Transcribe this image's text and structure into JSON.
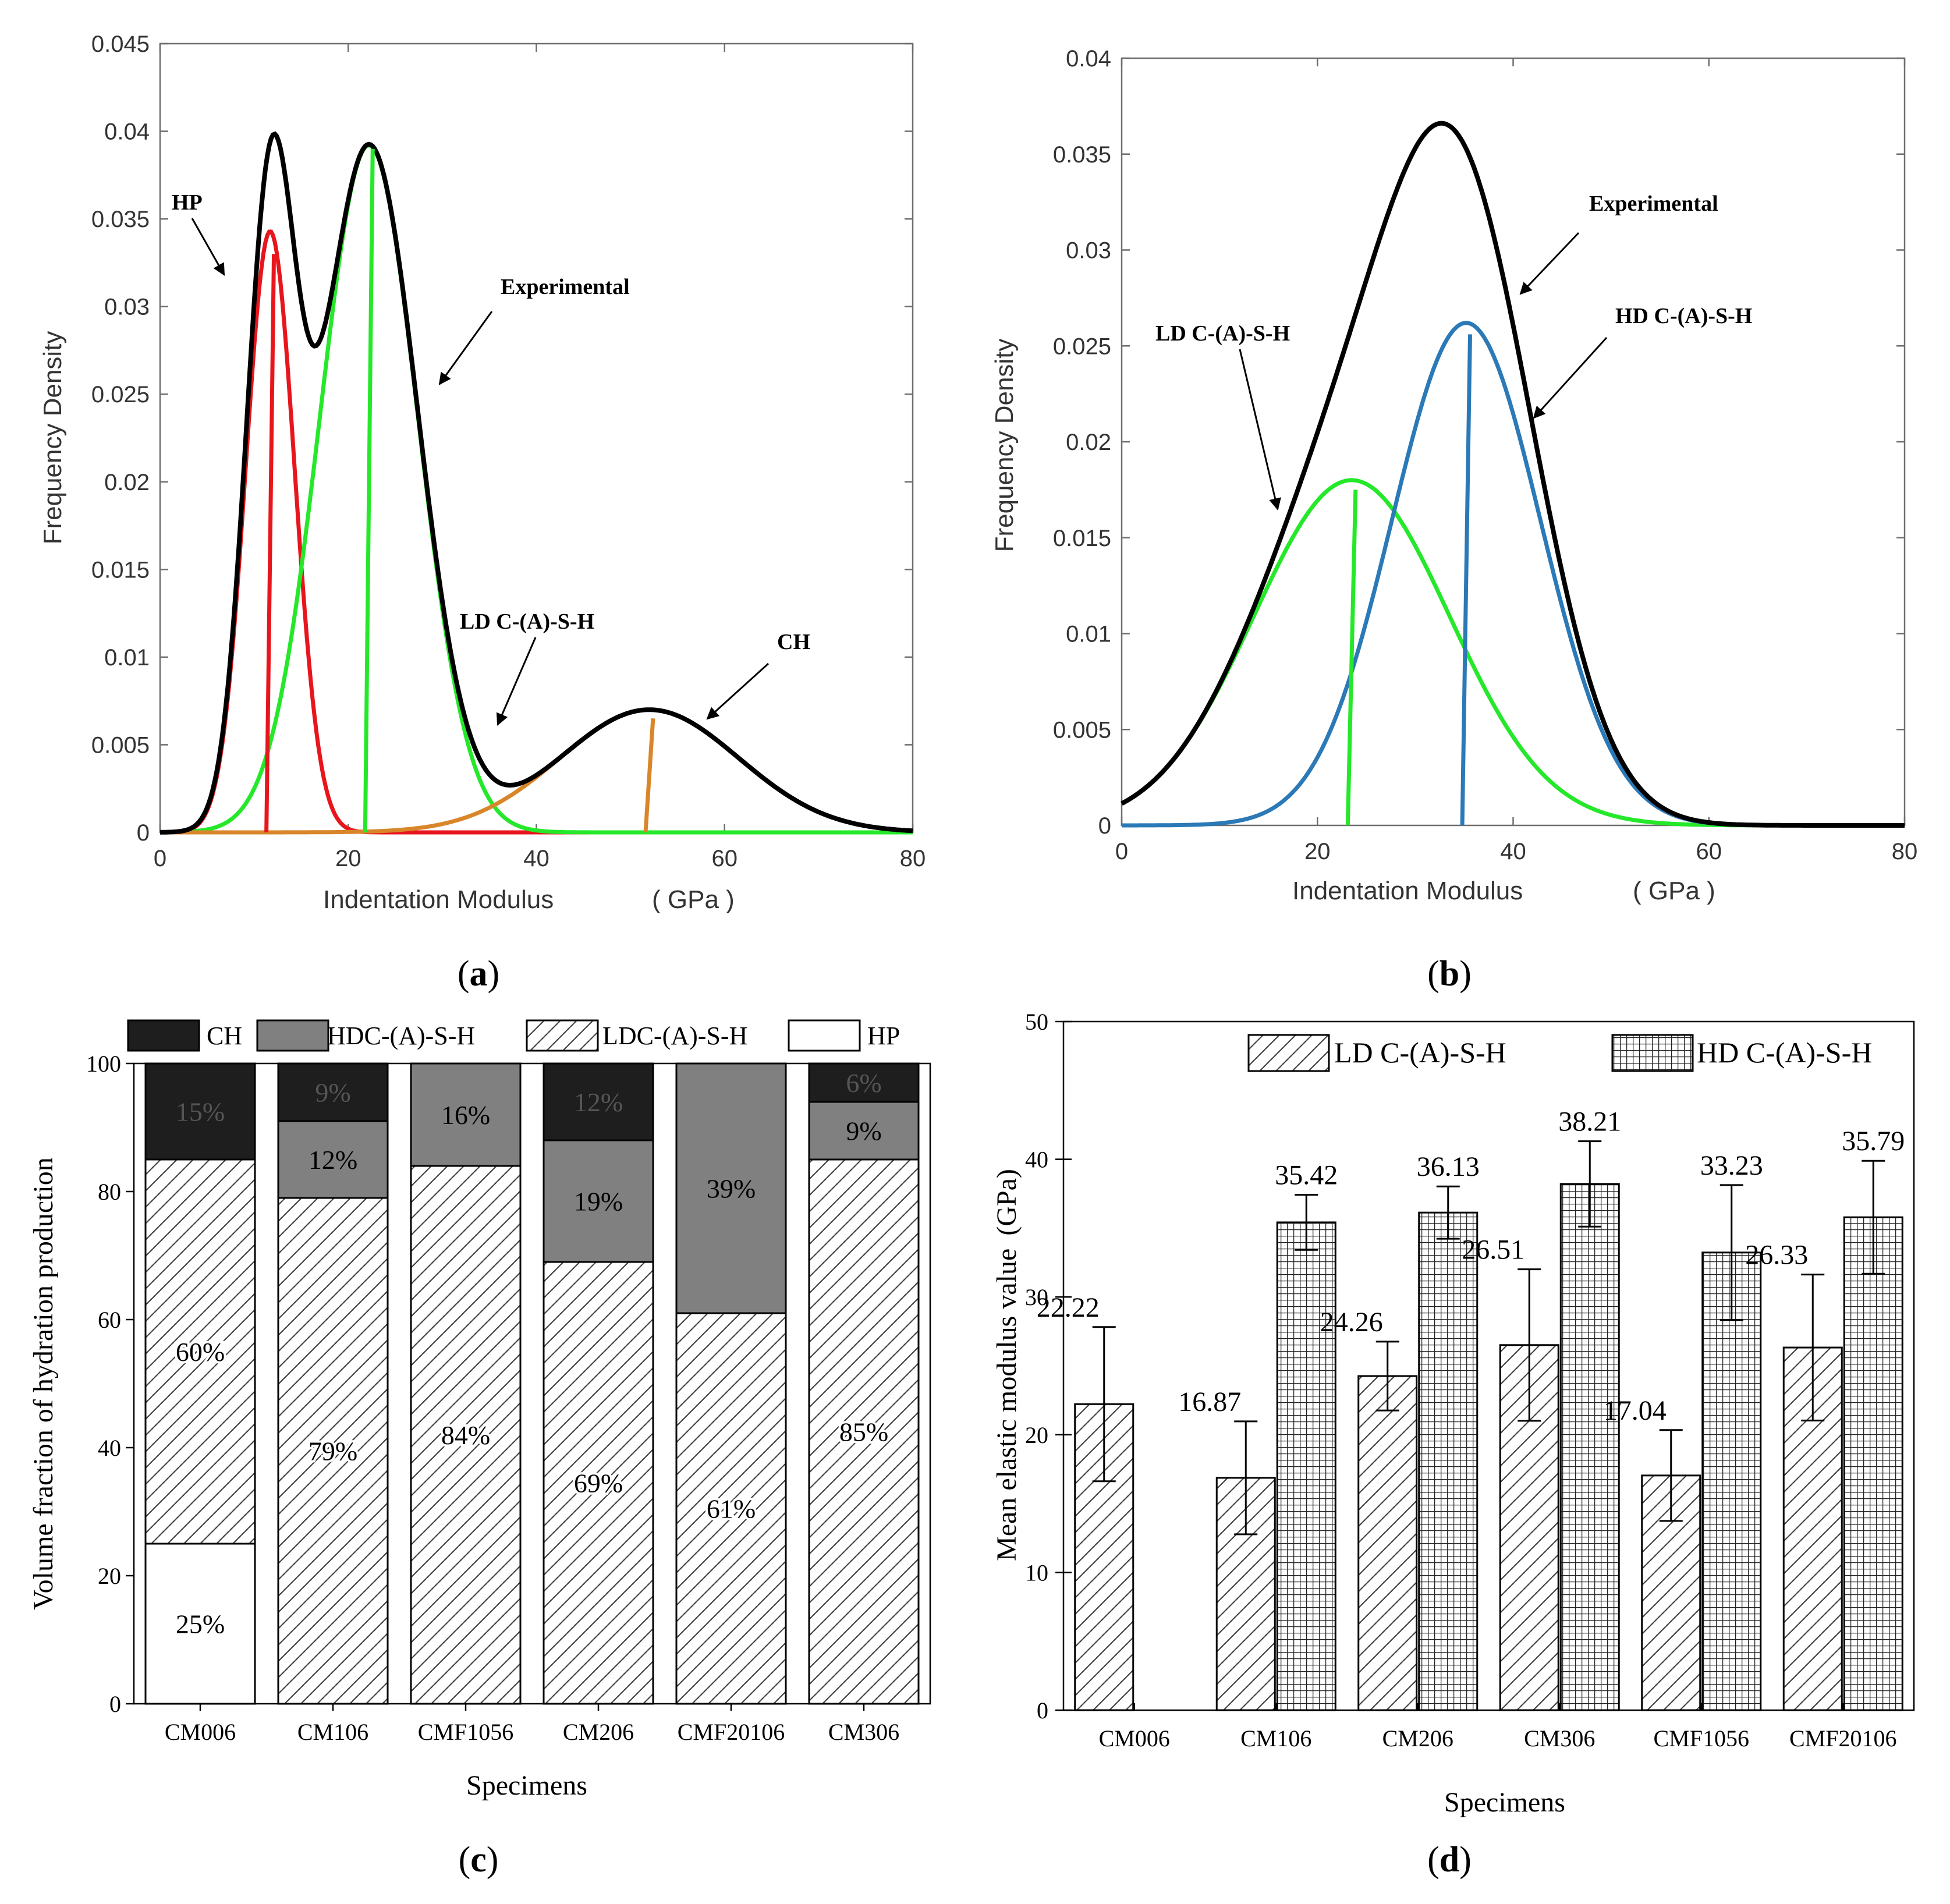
{
  "panels": {
    "a": {
      "caption": "a"
    },
    "b": {
      "caption": "b"
    },
    "c": {
      "caption": "c"
    },
    "d": {
      "caption": "d"
    }
  },
  "colors": {
    "experimental": "#000000",
    "hp": "#e8161c",
    "ld": "#25e82a",
    "ch": "#d9862a",
    "hd": "#2b79b6",
    "ch_fill": "#1e1e1e",
    "hd_fill": "#808080"
  },
  "chart_data": [
    {
      "id": "a",
      "type": "line",
      "xlabel": "Indentation  Modulus",
      "xunit": "( GPa )",
      "ylabel": "Frequency  Density",
      "xlim": [
        0,
        80
      ],
      "ylim": [
        0,
        0.045
      ],
      "xticks": [
        0,
        20,
        40,
        60,
        80
      ],
      "yticks": [
        0,
        0.005,
        0.01,
        0.015,
        0.02,
        0.025,
        0.03,
        0.035,
        0.04,
        0.045
      ],
      "ytick_labels": [
        "0",
        "0.005",
        "0.01",
        "0.015",
        "0.02",
        "0.025",
        "0.03",
        "0.035",
        "0.04",
        "0.045"
      ],
      "series": [
        {
          "name": "HP",
          "color_key": "hp",
          "mean": 11.7,
          "sd": 2.6,
          "peak": 0.0343,
          "marker_top": 0.033
        },
        {
          "name": "LD C-(A)-S-H",
          "color_key": "ld",
          "mean": 22.2,
          "sd": 5.2,
          "peak": 0.0392,
          "marker_top": 0.039
        },
        {
          "name": "CH",
          "color_key": "ch",
          "mean": 52.0,
          "sd": 9.5,
          "peak": 0.007,
          "marker_top": 0.0065
        },
        {
          "name": "Experimental",
          "color_key": "experimental",
          "composite": true
        }
      ],
      "annotations": [
        {
          "label": "HP",
          "target": "hp"
        },
        {
          "label": "Experimental",
          "target": "experimental"
        },
        {
          "label": "LD C-(A)-S-H",
          "target": "ld"
        },
        {
          "label": "CH",
          "target": "ch"
        }
      ]
    },
    {
      "id": "b",
      "type": "line",
      "xlabel": "Indentation  Modulus",
      "xunit": "( GPa )",
      "ylabel": "Frequency  Density",
      "xlim": [
        0,
        80
      ],
      "ylim": [
        0,
        0.04
      ],
      "xticks": [
        0,
        20,
        40,
        60,
        80
      ],
      "yticks": [
        0,
        0.005,
        0.01,
        0.015,
        0.02,
        0.025,
        0.03,
        0.035,
        0.04
      ],
      "ytick_labels": [
        "0",
        "0.005",
        "0.01",
        "0.015",
        "0.02",
        "0.025",
        "0.03",
        "0.035",
        "0.04"
      ],
      "series": [
        {
          "name": "LD C-(A)-S-H",
          "color_key": "ld",
          "mean": 23.5,
          "sd": 10.0,
          "peak": 0.018,
          "marker_top": 0.0175
        },
        {
          "name": "HD C-(A)-S-H",
          "color_key": "hd",
          "mean": 35.2,
          "sd": 7.6,
          "peak": 0.0262,
          "marker_top": 0.0256
        },
        {
          "name": "Experimental",
          "color_key": "experimental",
          "composite": true
        }
      ],
      "annotations": [
        {
          "label": "Experimental",
          "target": "experimental"
        },
        {
          "label": "LD C-(A)-S-H",
          "target": "ld"
        },
        {
          "label": "HD C-(A)-S-H",
          "target": "hd"
        }
      ]
    },
    {
      "id": "c",
      "type": "bar",
      "stacked": true,
      "xlabel": "Specimens",
      "ylabel": "Volume fraction of hydration production",
      "ylim": [
        0,
        100
      ],
      "yticks": [
        0,
        20,
        40,
        60,
        80,
        100
      ],
      "categories": [
        "CM006",
        "CM106",
        "CMF1056",
        "CM206",
        "CMF20106",
        "CM306"
      ],
      "series": [
        {
          "name": "HP",
          "pattern": "white",
          "values": [
            25,
            0,
            0,
            0,
            0,
            0
          ],
          "labels": [
            "25%",
            "",
            "",
            "",
            "",
            ""
          ]
        },
        {
          "name": "LDC-(A)-S-H",
          "pattern": "hatch",
          "values": [
            60,
            79,
            84,
            69,
            61,
            85
          ],
          "labels": [
            "60%",
            "79%",
            "84%",
            "69%",
            "61%",
            "85%"
          ]
        },
        {
          "name": "HDC-(A)-S-H",
          "pattern": "gray",
          "values": [
            0,
            12,
            16,
            19,
            39,
            9
          ],
          "labels": [
            "",
            "12%",
            "16%",
            "19%",
            "39%",
            "9%"
          ]
        },
        {
          "name": "CH",
          "pattern": "dark",
          "values": [
            15,
            9,
            0,
            12,
            0,
            6
          ],
          "labels": [
            "15%",
            "9%",
            "",
            "12%",
            "",
            "6%"
          ]
        }
      ],
      "legend_order": [
        "CH",
        "HDC-(A)-S-H",
        "LDC-(A)-S-H",
        "HP"
      ],
      "legend": "top"
    },
    {
      "id": "d",
      "type": "bar",
      "grouped": true,
      "xlabel": "Specimens",
      "ylabel": "Mean elastic modulus value",
      "yunit": "(GPa)",
      "ylim": [
        0,
        50
      ],
      "yticks": [
        0,
        10,
        20,
        30,
        40,
        50
      ],
      "categories": [
        "CM006",
        "CM106",
        "CM206",
        "CM306",
        "CMF1056",
        "CMF20106"
      ],
      "series": [
        {
          "name": "LD C-(A)-S-H",
          "pattern": "hatch",
          "values": [
            22.22,
            16.87,
            24.26,
            26.51,
            17.04,
            26.33
          ],
          "labels": [
            "22.22",
            "16.87",
            "24.26",
            "26.51",
            "17.04",
            "26.33"
          ],
          "errors": [
            5.6,
            4.1,
            2.5,
            5.5,
            3.3,
            5.3
          ]
        },
        {
          "name": "HD C-(A)-S-H",
          "pattern": "grid",
          "values": [
            null,
            35.42,
            36.13,
            38.21,
            33.23,
            35.79
          ],
          "labels": [
            "",
            "35.42",
            "36.13",
            "38.21",
            "33.23",
            "35.79"
          ],
          "errors": [
            null,
            2.0,
            1.9,
            3.1,
            4.9,
            4.1
          ]
        }
      ],
      "legend": "top-right"
    }
  ]
}
